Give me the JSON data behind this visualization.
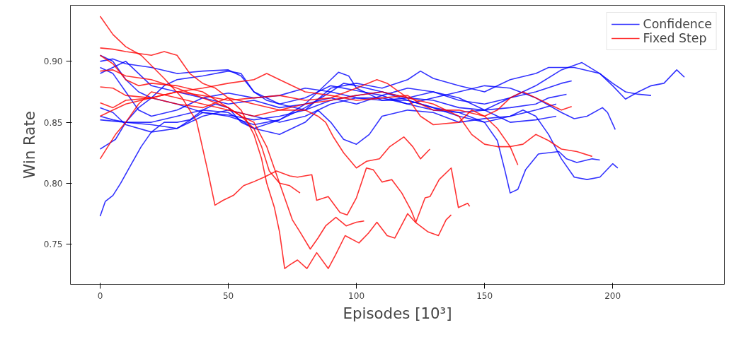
{
  "chart_data": {
    "type": "line",
    "xlabel": "Episodes [10³]",
    "ylabel": "Win Rate",
    "xlim": [
      -11.6,
      243.6
    ],
    "ylim": [
      0.717,
      0.946
    ],
    "xticks": [
      0,
      50,
      100,
      150,
      200
    ],
    "yticks": [
      0.75,
      {
        "value": 0.8,
        "label": "0.80"
      },
      0.85,
      {
        "value": 0.9,
        "label": "0.90"
      }
    ],
    "grid": false,
    "legend": "top right",
    "line_style": "solid",
    "marker": "none",
    "series": [
      {
        "name": "Confidence",
        "color": "#0000ff",
        "x": [
          0,
          5,
          10,
          15,
          20,
          30,
          40,
          50,
          60,
          70,
          80,
          90,
          100,
          110,
          120,
          130,
          140,
          150,
          160,
          170,
          180,
          188,
          195,
          200,
          205,
          210,
          215,
          220,
          225,
          228
        ],
        "values": [
          0.905,
          0.9,
          0.885,
          0.875,
          0.87,
          0.865,
          0.858,
          0.856,
          0.852,
          0.855,
          0.86,
          0.868,
          0.872,
          0.875,
          0.868,
          0.862,
          0.858,
          0.86,
          0.87,
          0.88,
          0.893,
          0.899,
          0.89,
          0.88,
          0.869,
          0.875,
          0.88,
          0.882,
          0.893,
          0.887
        ]
      },
      {
        "color": "#0000ff",
        "x": [
          0,
          5,
          10,
          20,
          30,
          40,
          50,
          55,
          60,
          70,
          80,
          90,
          100,
          110,
          120,
          125,
          130,
          140,
          150,
          160,
          170,
          175,
          185,
          195,
          200,
          205,
          210,
          215
        ],
        "values": [
          0.9,
          0.902,
          0.898,
          0.895,
          0.89,
          0.892,
          0.893,
          0.888,
          0.875,
          0.865,
          0.86,
          0.878,
          0.882,
          0.878,
          0.885,
          0.892,
          0.886,
          0.88,
          0.875,
          0.885,
          0.89,
          0.895,
          0.895,
          0.89,
          0.882,
          0.875,
          0.873,
          0.872
        ]
      },
      {
        "color": "#0000ff",
        "x": [
          0,
          5,
          10,
          15,
          20,
          30,
          40,
          50,
          60,
          70,
          80,
          90,
          100,
          110,
          120,
          130,
          140,
          150,
          160,
          170,
          180,
          185,
          190,
          196,
          198,
          201
        ],
        "values": [
          0.895,
          0.89,
          0.875,
          0.86,
          0.855,
          0.86,
          0.87,
          0.874,
          0.87,
          0.872,
          0.878,
          0.875,
          0.87,
          0.87,
          0.865,
          0.87,
          0.875,
          0.88,
          0.878,
          0.87,
          0.858,
          0.853,
          0.855,
          0.862,
          0.858,
          0.844
        ]
      },
      {
        "color": "#0000ff",
        "x": [
          0,
          10,
          20,
          30,
          40,
          50,
          60,
          70,
          80,
          90,
          100,
          110,
          120,
          130,
          140,
          150,
          155,
          158,
          160,
          163,
          166,
          171,
          179,
          182,
          186,
          192,
          195
        ],
        "values": [
          0.89,
          0.9,
          0.88,
          0.875,
          0.87,
          0.865,
          0.868,
          0.862,
          0.865,
          0.87,
          0.865,
          0.872,
          0.865,
          0.86,
          0.858,
          0.85,
          0.835,
          0.81,
          0.792,
          0.795,
          0.811,
          0.824,
          0.826,
          0.82,
          0.817,
          0.82,
          0.819
        ]
      },
      {
        "color": "#0000ff",
        "x": [
          0,
          5,
          10,
          20,
          30,
          40,
          50,
          60,
          70,
          80,
          90,
          100,
          110,
          120,
          130,
          140,
          150,
          160,
          165,
          170,
          175,
          180,
          185,
          190,
          195,
          200,
          202
        ],
        "values": [
          0.855,
          0.852,
          0.85,
          0.848,
          0.845,
          0.855,
          0.86,
          0.855,
          0.85,
          0.855,
          0.865,
          0.87,
          0.868,
          0.868,
          0.862,
          0.855,
          0.85,
          0.855,
          0.86,
          0.855,
          0.84,
          0.82,
          0.805,
          0.803,
          0.805,
          0.816,
          0.8125
        ]
      },
      {
        "color": "#0000ff",
        "x": [
          0,
          5,
          10,
          20,
          30,
          40,
          50,
          60,
          70,
          80,
          90,
          95,
          100,
          110,
          120,
          130,
          140,
          150,
          160,
          170,
          175,
          182
        ],
        "values": [
          0.862,
          0.858,
          0.848,
          0.842,
          0.845,
          0.858,
          0.855,
          0.848,
          0.852,
          0.862,
          0.875,
          0.882,
          0.88,
          0.875,
          0.87,
          0.868,
          0.862,
          0.86,
          0.862,
          0.865,
          0.87,
          0.873
        ]
      },
      {
        "color": "#0000ff",
        "x": [
          0,
          10,
          20,
          30,
          40,
          50,
          60,
          70,
          80,
          85,
          90,
          95,
          100,
          105,
          110,
          120,
          130,
          140,
          150,
          160,
          170,
          178
        ],
        "values": [
          0.852,
          0.85,
          0.85,
          0.855,
          0.86,
          0.858,
          0.845,
          0.84,
          0.85,
          0.86,
          0.85,
          0.836,
          0.832,
          0.84,
          0.855,
          0.86,
          0.858,
          0.85,
          0.853,
          0.855,
          0.86,
          0.865
        ]
      },
      {
        "color": "#0000ff",
        "x": [
          0,
          3,
          6,
          10,
          15,
          20,
          25,
          30,
          40,
          50,
          55,
          60,
          65,
          70,
          80,
          90,
          100,
          110,
          120,
          130,
          140,
          150,
          160,
          170,
          180,
          184
        ],
        "values": [
          0.828,
          0.832,
          0.836,
          0.85,
          0.862,
          0.87,
          0.88,
          0.885,
          0.888,
          0.892,
          0.89,
          0.875,
          0.868,
          0.865,
          0.87,
          0.88,
          0.876,
          0.872,
          0.878,
          0.875,
          0.868,
          0.865,
          0.87,
          0.875,
          0.882,
          0.884
        ]
      },
      {
        "color": "#0000ff",
        "x": [
          0,
          2,
          5,
          8,
          12,
          16,
          20,
          25,
          30,
          35,
          40,
          45,
          50,
          55,
          60,
          70,
          80,
          85,
          90,
          93,
          97,
          100,
          110,
          120,
          130,
          140,
          150,
          160,
          170,
          178
        ],
        "values": [
          0.773,
          0.785,
          0.79,
          0.8,
          0.815,
          0.83,
          0.842,
          0.85,
          0.85,
          0.852,
          0.86,
          0.865,
          0.862,
          0.85,
          0.845,
          0.852,
          0.865,
          0.875,
          0.885,
          0.891,
          0.888,
          0.878,
          0.868,
          0.87,
          0.875,
          0.87,
          0.86,
          0.85,
          0.852,
          0.855
        ]
      },
      {
        "name": "Fixed Step",
        "color": "#ff0000",
        "x": [
          0,
          5,
          10,
          16,
          25,
          32,
          37.6,
          39,
          42,
          44.8,
          48,
          52,
          56,
          59.7,
          64,
          68.8,
          74,
          77,
          82.6,
          84.5,
          89,
          93.6,
          96.4,
          100,
          103.9,
          106.6,
          110,
          113.8,
          117.7,
          121.3,
          123.2,
          126.8,
          128.7,
          132.3,
          137,
          139.8,
          143.4,
          144.2
        ],
        "values": [
          0.937,
          0.922,
          0.912,
          0.905,
          0.886,
          0.87,
          0.851,
          0.838,
          0.81,
          0.782,
          0.786,
          0.79,
          0.798,
          0.801,
          0.805,
          0.81,
          0.806,
          0.805,
          0.807,
          0.786,
          0.789,
          0.776,
          0.774,
          0.788,
          0.8125,
          0.811,
          0.801,
          0.803,
          0.792,
          0.778,
          0.768,
          0.788,
          0.789,
          0.803,
          0.8125,
          0.78,
          0.7835,
          0.781
        ]
      },
      {
        "color": "#ff0000",
        "x": [
          0,
          5,
          10,
          20,
          25,
          30,
          35,
          40,
          45,
          50,
          55,
          60,
          63,
          65,
          68,
          70,
          72,
          74,
          77,
          80.7,
          84.5,
          89,
          91.8,
          95.6,
          101,
          104.7,
          108,
          112,
          115,
          120,
          123,
          128,
          132,
          135,
          137
        ],
        "values": [
          0.911,
          0.91,
          0.908,
          0.905,
          0.908,
          0.905,
          0.89,
          0.882,
          0.878,
          0.87,
          0.86,
          0.84,
          0.82,
          0.8,
          0.78,
          0.76,
          0.73,
          0.733,
          0.737,
          0.73,
          0.743,
          0.73,
          0.741,
          0.757,
          0.751,
          0.759,
          0.768,
          0.757,
          0.755,
          0.775,
          0.768,
          0.76,
          0.757,
          0.77,
          0.774
        ]
      },
      {
        "color": "#ff0000",
        "x": [
          0,
          5,
          10,
          15,
          20,
          30,
          40,
          50,
          55,
          60,
          65,
          70,
          75,
          78,
          82,
          85,
          88,
          92,
          96,
          100,
          103
        ],
        "values": [
          0.905,
          0.898,
          0.885,
          0.88,
          0.882,
          0.88,
          0.875,
          0.862,
          0.855,
          0.85,
          0.83,
          0.8,
          0.77,
          0.76,
          0.746,
          0.755,
          0.765,
          0.772,
          0.765,
          0.768,
          0.769
        ]
      },
      {
        "color": "#ff0000",
        "x": [
          0,
          5,
          10,
          20,
          30,
          40,
          50,
          55,
          60,
          63,
          66,
          70,
          74,
          78
        ],
        "values": [
          0.892,
          0.893,
          0.888,
          0.885,
          0.878,
          0.87,
          0.862,
          0.855,
          0.845,
          0.83,
          0.81,
          0.8,
          0.798,
          0.792
        ]
      },
      {
        "color": "#ff0000",
        "x": [
          0,
          5,
          10,
          20,
          30,
          40,
          50,
          60,
          70,
          80,
          85,
          88,
          91,
          95,
          100,
          104,
          109,
          113,
          118.5,
          122,
          125,
          128.7
        ],
        "values": [
          0.879,
          0.878,
          0.872,
          0.87,
          0.865,
          0.862,
          0.87,
          0.865,
          0.86,
          0.86,
          0.855,
          0.85,
          0.838,
          0.825,
          0.8125,
          0.818,
          0.82,
          0.83,
          0.838,
          0.83,
          0.82,
          0.828
        ]
      },
      {
        "color": "#ff0000",
        "x": [
          0,
          5,
          10,
          20,
          30,
          40,
          50,
          60,
          70,
          80,
          90,
          100,
          108,
          112,
          120,
          125,
          130,
          140,
          145,
          150,
          155,
          160,
          163
        ],
        "values": [
          0.866,
          0.862,
          0.868,
          0.87,
          0.875,
          0.872,
          0.868,
          0.87,
          0.872,
          0.868,
          0.87,
          0.878,
          0.885,
          0.882,
          0.87,
          0.855,
          0.848,
          0.85,
          0.86,
          0.855,
          0.845,
          0.83,
          0.815
        ]
      },
      {
        "color": "#ff0000",
        "x": [
          0,
          5,
          10,
          20,
          30,
          40,
          50,
          60,
          65,
          70,
          80,
          90,
          100,
          110,
          120,
          125,
          130,
          140,
          150,
          155,
          160,
          165,
          170,
          175,
          180,
          184
        ],
        "values": [
          0.855,
          0.86,
          0.865,
          0.87,
          0.875,
          0.878,
          0.882,
          0.885,
          0.89,
          0.885,
          0.875,
          0.872,
          0.868,
          0.87,
          0.872,
          0.865,
          0.86,
          0.86,
          0.855,
          0.86,
          0.87,
          0.875,
          0.87,
          0.865,
          0.86,
          0.863
        ]
      },
      {
        "color": "#ff0000",
        "x": [
          0,
          3,
          6,
          10,
          15,
          20,
          30,
          40,
          50,
          60,
          70,
          80,
          90,
          100,
          110,
          120,
          130,
          140,
          145,
          150,
          155,
          160,
          165,
          170,
          175,
          180,
          186,
          192
        ],
        "values": [
          0.82,
          0.83,
          0.84,
          0.85,
          0.865,
          0.875,
          0.87,
          0.865,
          0.86,
          0.855,
          0.86,
          0.865,
          0.868,
          0.872,
          0.875,
          0.87,
          0.865,
          0.855,
          0.84,
          0.832,
          0.83,
          0.83,
          0.832,
          0.84,
          0.835,
          0.828,
          0.826,
          0.822
        ]
      }
    ]
  }
}
